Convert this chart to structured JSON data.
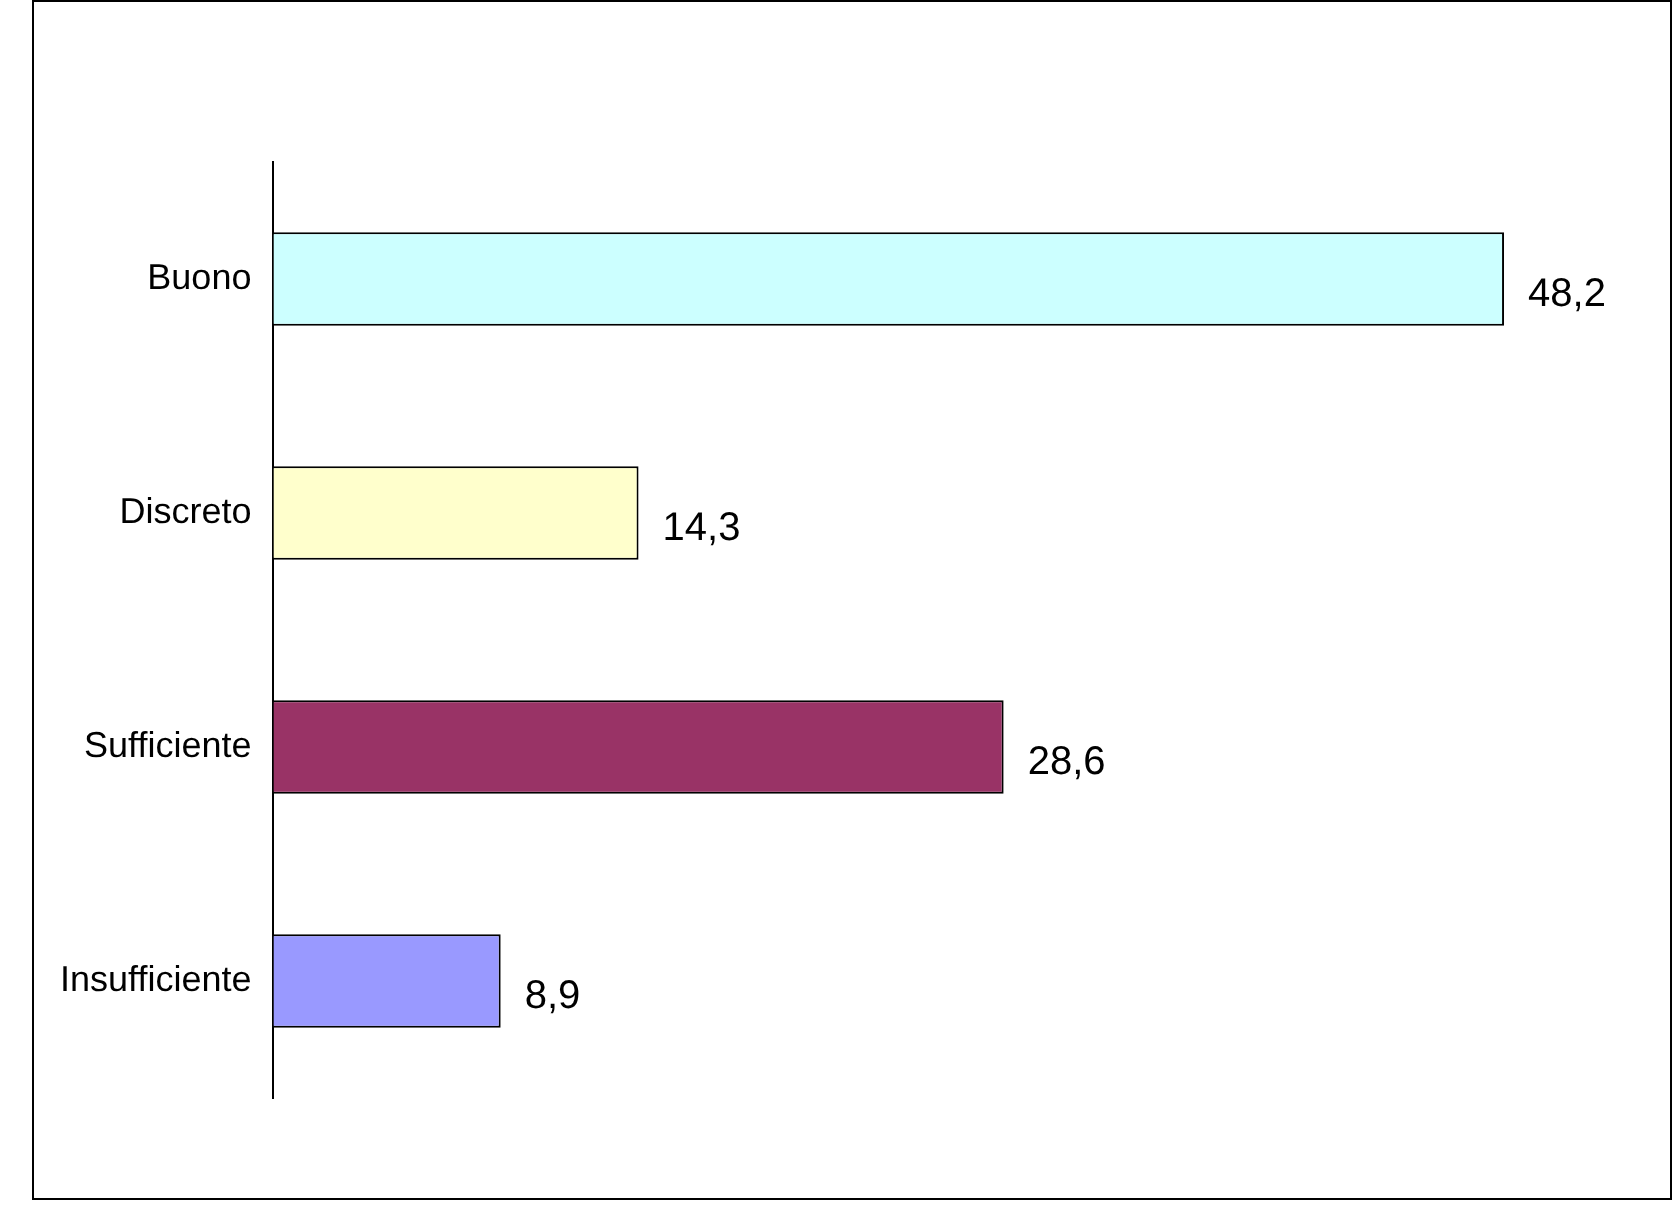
{
  "chart_data": {
    "type": "bar",
    "orientation": "horizontal",
    "categories": [
      "Buono",
      "Discreto",
      "Sufficiente",
      "Insufficiente"
    ],
    "values": [
      48.2,
      14.3,
      28.6,
      8.9
    ],
    "colors": [
      "#ccffff",
      "#ffffcc",
      "#993366",
      "#9999ff"
    ],
    "value_labels": [
      "48,2",
      "14,3",
      "28,6",
      "8,9"
    ],
    "grid": false,
    "legend": false
  }
}
